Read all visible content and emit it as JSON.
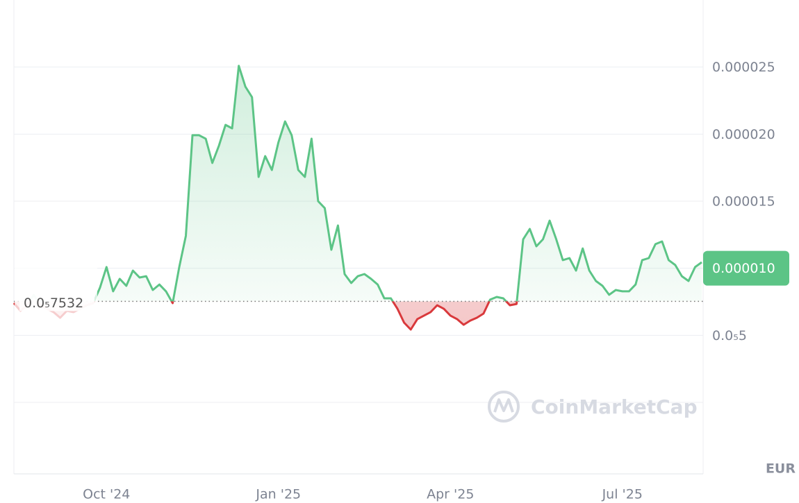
{
  "chart_data": {
    "type": "line",
    "categories": [
      null,
      null,
      null,
      null,
      null,
      null,
      null,
      null,
      null,
      null,
      null,
      null,
      null,
      null,
      "Oct '24",
      null,
      null,
      null,
      null,
      null,
      null,
      null,
      null,
      null,
      null,
      null,
      null,
      null,
      null,
      null,
      null,
      null,
      null,
      null,
      null,
      null,
      null,
      null,
      null,
      null,
      "Jan '25",
      null,
      null,
      null,
      null,
      null,
      null,
      null,
      null,
      null,
      null,
      null,
      null,
      null,
      null,
      null,
      null,
      null,
      null,
      null,
      null,
      null,
      null,
      null,
      null,
      null,
      "Apr '25",
      null,
      null,
      null,
      null,
      null,
      null,
      null,
      null,
      null,
      null,
      null,
      null,
      null,
      null,
      null,
      null,
      null,
      null,
      null,
      null,
      null,
      null,
      null,
      null,
      null,
      "Jul '25",
      null,
      null,
      null,
      null,
      null,
      null,
      null,
      null,
      null,
      null,
      null,
      null
    ],
    "values": [
      7.4e-06,
      6.83e-06,
      7.24e-06,
      8.02e-06,
      7.24e-06,
      6.98e-06,
      6.73e-06,
      6.31e-06,
      6.83e-06,
      6.73e-06,
      6.98e-06,
      7.24e-06,
      7.4e-06,
      8.54e-06,
      1.009e-05,
      8.28e-06,
      9.21e-06,
      8.69e-06,
      9.83e-06,
      9.31e-06,
      9.41e-06,
      8.38e-06,
      8.79e-06,
      8.28e-06,
      7.4e-06,
      1.009e-05,
      1.242e-05,
      1.992e-05,
      1.992e-05,
      1.966e-05,
      1.785e-05,
      1.914e-05,
      2.069e-05,
      2.043e-05,
      2.509e-05,
      2.354e-05,
      2.276e-05,
      1.681e-05,
      1.836e-05,
      1.733e-05,
      1.94e-05,
      2.095e-05,
      1.992e-05,
      1.733e-05,
      1.681e-05,
      1.966e-05,
      1.5e-05,
      1.449e-05,
      1.138e-05,
      1.319e-05,
      9.57e-06,
      8.9e-06,
      9.41e-06,
      9.57e-06,
      9.21e-06,
      8.79e-06,
      7.76e-06,
      7.76e-06,
      6.98e-06,
      5.95e-06,
      5.43e-06,
      6.21e-06,
      6.47e-06,
      6.73e-06,
      7.24e-06,
      6.98e-06,
      6.47e-06,
      6.21e-06,
      5.79e-06,
      6.1e-06,
      6.31e-06,
      6.62e-06,
      7.66e-06,
      7.86e-06,
      7.76e-06,
      7.24e-06,
      7.34e-06,
      1.216e-05,
      1.293e-05,
      1.164e-05,
      1.216e-05,
      1.355e-05,
      1.216e-05,
      1.061e-05,
      1.076e-05,
      9.83e-06,
      1.148e-05,
      9.83e-06,
      9.05e-06,
      8.69e-06,
      8.02e-06,
      8.38e-06,
      8.28e-06,
      8.28e-06,
      8.79e-06,
      1.061e-05,
      1.076e-05,
      1.18e-05,
      1.2e-05,
      1.061e-05,
      1.024e-05,
      9.41e-06,
      9.05e-06,
      1.009e-05,
      1.045e-05
    ],
    "colors": {
      "above": "#5cc486",
      "below": "#d9393c"
    },
    "baseline": {
      "value": 7.532e-06,
      "label": "0.0₅7532"
    },
    "ylim": [
      0,
      3e-05
    ],
    "yticks": [
      {
        "value": 5e-06,
        "label": "0.0₅5"
      },
      {
        "value": 1e-05,
        "label": "0.000010"
      },
      1.5e-05,
      {
        "value": 2e-05,
        "label": "0.000020"
      },
      2.5e-05
    ],
    "grid": true,
    "currency": "EUR",
    "watermark": "CoinMarketCap"
  }
}
